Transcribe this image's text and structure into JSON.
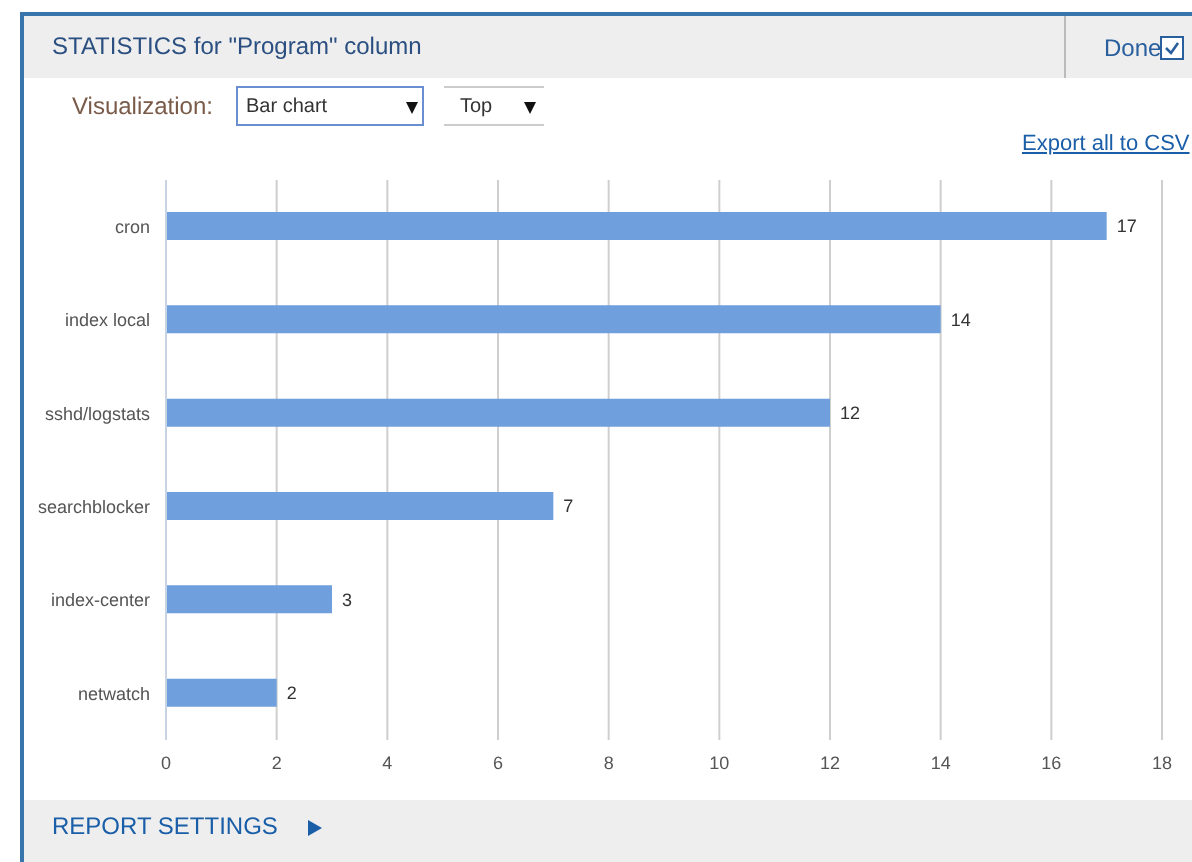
{
  "chart_data": {
    "type": "bar",
    "orientation": "horizontal",
    "title": "STATISTICS for \"Program\" column",
    "annotations": [
      "Done",
      "Visualization:",
      "Bar chart",
      "Top",
      "Export all to CSV",
      "REPORT SETTINGS"
    ],
    "categories": [
      "cron",
      "index local",
      "sshd/logstats",
      "searchblocker",
      "index-center",
      "netwatch"
    ],
    "values": [
      17,
      14,
      12,
      7,
      3,
      2
    ],
    "color": "#6f9fdc",
    "xlim": [
      0,
      18
    ],
    "xticks": [
      0,
      2,
      4,
      6,
      8,
      10,
      12,
      14,
      16,
      18
    ],
    "grid": "x",
    "data_labels": true
  }
}
